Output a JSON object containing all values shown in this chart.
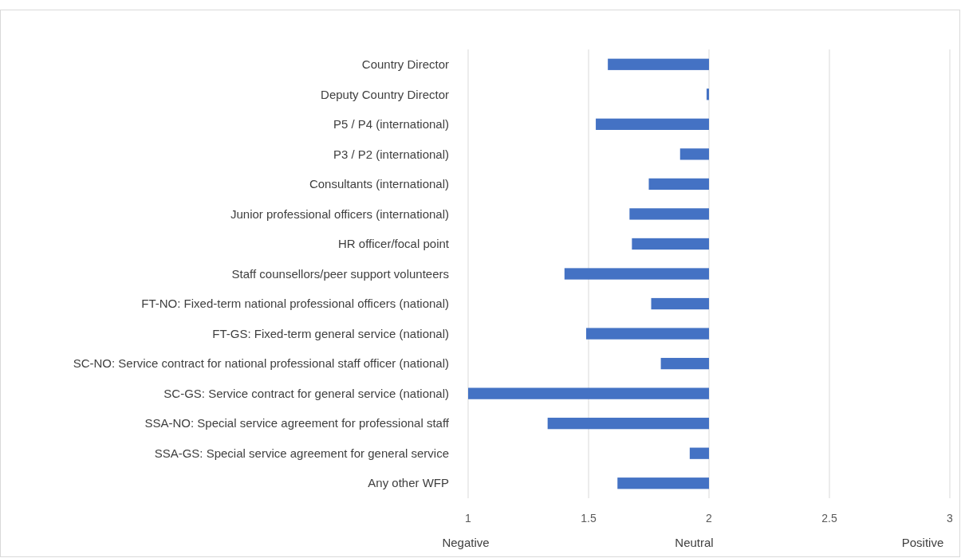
{
  "chart_data": {
    "type": "bar",
    "orientation": "horizontal",
    "categories": [
      "Country Director",
      "Deputy Country Director",
      "P5 / P4 (international)",
      "P3 / P2 (international)",
      "Consultants (international)",
      "Junior professional officers (international)",
      "HR officer/focal point",
      "Staff counsellors/peer support volunteers",
      "FT-NO: Fixed-term national professional officers (national)",
      "FT-GS: Fixed-term general service (national)",
      "SC-NO: Service contract for national professional staff officer (national)",
      "SC-GS: Service contract for general service (national)",
      "SSA-NO: Special service agreement for professional staff",
      "SSA-GS: Special service agreement for general service",
      "Any other WFP"
    ],
    "base": [
      2,
      2,
      2,
      2,
      2,
      2,
      2,
      2,
      2,
      2,
      2,
      2,
      2,
      2,
      2
    ],
    "values": [
      -0.42,
      -0.01,
      -0.47,
      -0.12,
      -0.25,
      -0.33,
      -0.32,
      -0.6,
      -0.24,
      -0.51,
      -0.2,
      -1,
      -0.67,
      -0.08,
      -0.38
    ],
    "color": "#4472c4",
    "xlim": [
      1,
      3
    ],
    "xticks": [
      1,
      1.5,
      2,
      2.5,
      3
    ],
    "grid": "x",
    "annotations": [
      "Negative",
      "Neutral",
      "Positive"
    ]
  }
}
